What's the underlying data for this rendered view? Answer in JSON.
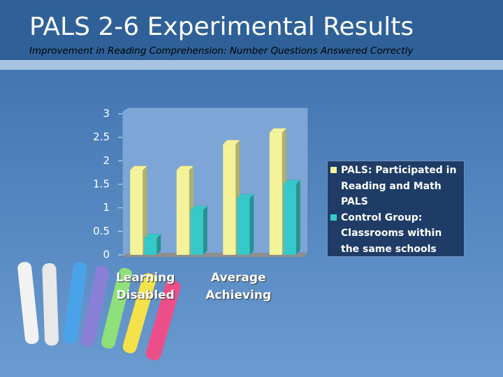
{
  "chart_data": {
    "type": "bar",
    "title": "PALS 2-6 Experimental Results",
    "subtitle": "Improvement in Reading Comprehension: Number Questions Answered Correctly",
    "categories": [
      "Learning Disabled",
      null,
      "Average Achieving",
      null
    ],
    "series": [
      {
        "name": "PALS: Participated in Reading and Math PALS",
        "color": "#f5f39a",
        "values": [
          1.8,
          1.8,
          2.35,
          2.6
        ]
      },
      {
        "name": "Control Group: Classrooms within the same schools",
        "color": "#36c9c9",
        "values": [
          0.35,
          0.95,
          1.2,
          1.5
        ]
      }
    ],
    "ylim": [
      0,
      3
    ],
    "yticks": [
      0,
      0.5,
      1,
      1.5,
      2,
      2.5,
      3
    ],
    "grid": false,
    "legend": "right"
  }
}
